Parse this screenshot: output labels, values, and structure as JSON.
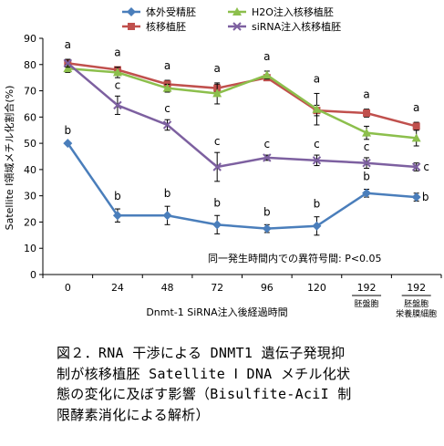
{
  "chart_data": {
    "type": "line",
    "x_labels": [
      "0",
      "24",
      "48",
      "72",
      "96",
      "120",
      "192",
      "192"
    ],
    "x_sublabels": [
      "",
      "",
      "",
      "",
      "",
      "",
      "胚盤胞",
      "胚盤胞\n栄養膜細胞"
    ],
    "xlabel": "Dnmt-1 SiRNA注入後経過時間",
    "ylabel": "Satellite Ⅰ領域メチル化割合(%)",
    "ylim": [
      0,
      90
    ],
    "yticks": [
      0,
      10,
      20,
      30,
      40,
      50,
      60,
      70,
      80,
      90
    ],
    "grid": false,
    "legend_position": "top",
    "note": "同一発生時間内での異符号間: P<0.05",
    "series": [
      {
        "name": "体外受精胚",
        "color": "#4a7ebb",
        "marker": "diamond",
        "values": [
          50,
          22.5,
          22.5,
          19,
          17.5,
          18.5,
          31,
          29.5
        ],
        "errors": [
          0,
          2.5,
          3.5,
          3.5,
          1.5,
          3.5,
          1.5,
          1.5
        ],
        "letters": [
          "b",
          "b",
          "b",
          "b",
          "b",
          "b",
          "b",
          "b"
        ]
      },
      {
        "name": "核移植胚",
        "color": "#c0504d",
        "marker": "square",
        "values": [
          80.5,
          78,
          72.5,
          71,
          75,
          62.5,
          61.5,
          56.5
        ],
        "errors": [
          1,
          1,
          1.5,
          1.5,
          1,
          2,
          1.5,
          1.5
        ],
        "letters": [
          "a",
          "a",
          "a",
          "a",
          "a",
          "a",
          "a",
          "a"
        ]
      },
      {
        "name": "H2O注入核移植胚",
        "color": "#8cbf4c",
        "marker": "triangle",
        "values": [
          78.5,
          77,
          71,
          69,
          76,
          63,
          54,
          52
        ],
        "errors": [
          1.5,
          2,
          1.5,
          4,
          1.5,
          6,
          2.5,
          3
        ],
        "letters": [
          "a",
          "a",
          "a",
          "a",
          "a",
          "a",
          "a",
          "a"
        ]
      },
      {
        "name": "siRNA注入核移植胚",
        "color": "#7d60a0",
        "marker": "x",
        "values": [
          80.5,
          64.5,
          57,
          41,
          44.5,
          43.5,
          42.5,
          41
        ],
        "errors": [
          1.5,
          3.5,
          2,
          5.5,
          1,
          2,
          2,
          1.5
        ],
        "letters": [
          "a",
          "c",
          "c",
          "c",
          "c",
          "c",
          "c",
          "c"
        ]
      }
    ]
  },
  "caption": {
    "line1": "図２．RNA 干渉による DNMT1 遺伝子発現抑",
    "line2": "制が核移植胚 Satellite Ⅰ DNA メチル化状",
    "line3": "態の変化に及ぼす影響（Bisulfite-AciI 制",
    "line4": "限酵素消化による解析）"
  }
}
